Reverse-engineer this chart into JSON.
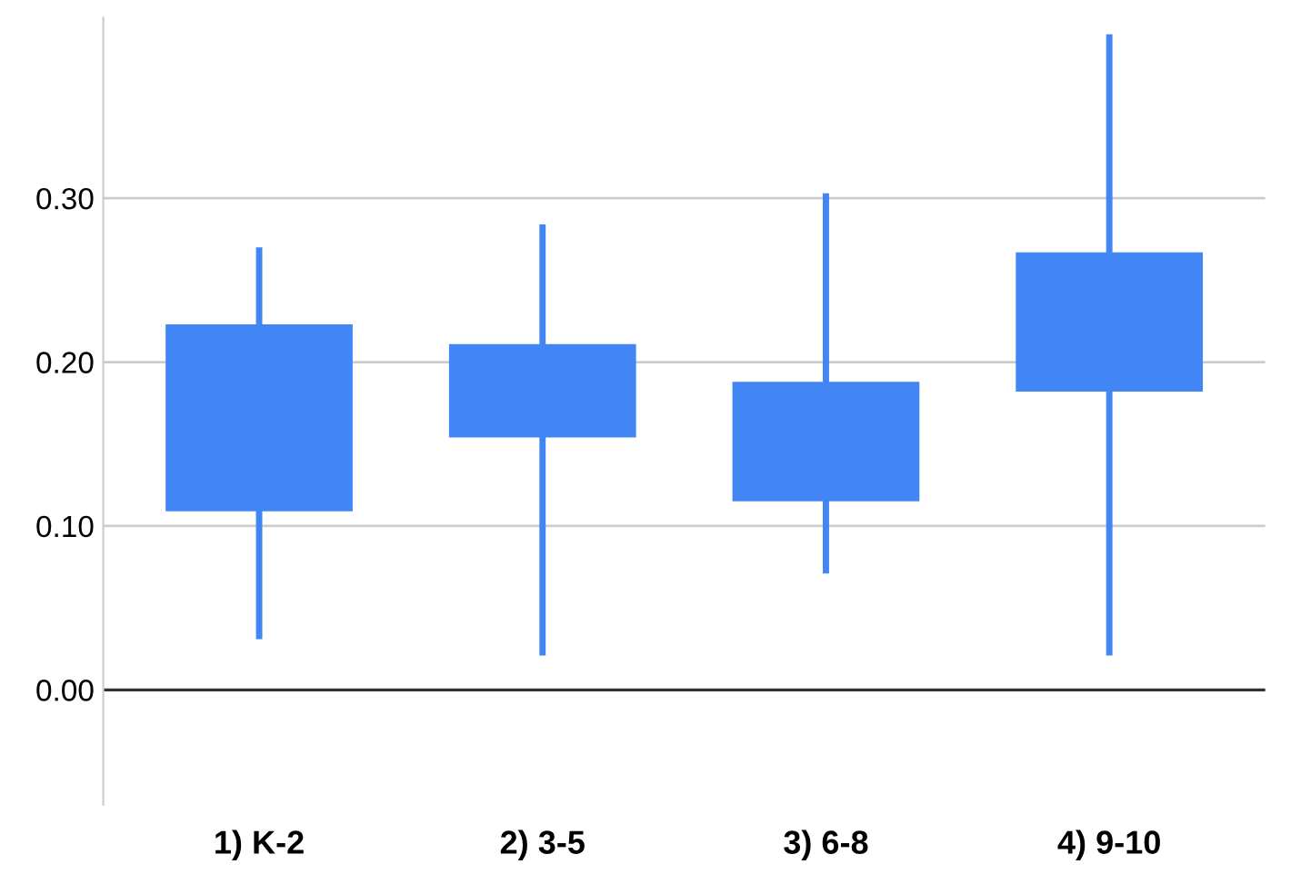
{
  "chart_data": {
    "type": "candlestick",
    "categories": [
      "1) K-2",
      "2) 3-5",
      "3) 6-8",
      "4) 9-10"
    ],
    "ohlc": [
      [
        0.109,
        0.27,
        0.031,
        0.223
      ],
      [
        0.154,
        0.284,
        0.021,
        0.211
      ],
      [
        0.115,
        0.303,
        0.071,
        0.188
      ],
      [
        0.182,
        0.4,
        0.021,
        0.267
      ]
    ],
    "color": "#4285f4",
    "ylim": [
      -0.07,
      0.41
    ],
    "yticks": [
      {
        "value": 0,
        "label": "0.00"
      },
      {
        "value": 0.1,
        "label": "0.10"
      },
      {
        "value": 0.2,
        "label": "0.20"
      },
      {
        "value": 0.3,
        "label": "0.30"
      }
    ],
    "grid": "y"
  }
}
